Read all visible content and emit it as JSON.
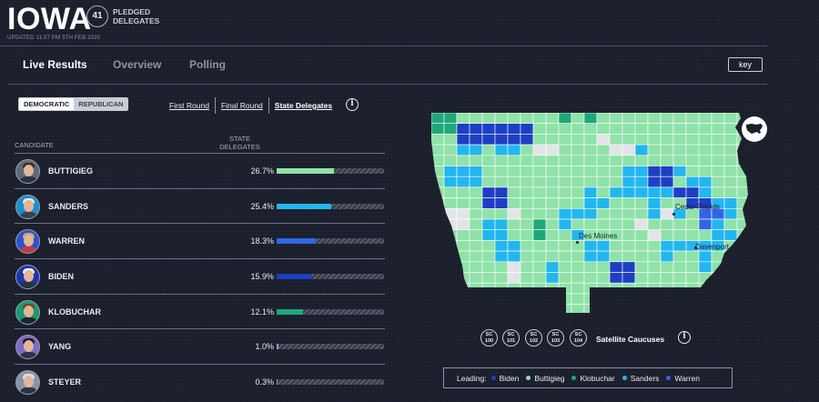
{
  "header": {
    "state": "IOWA",
    "pledged_delegates": "41",
    "pledged_label": "PLEDGED DELEGATES",
    "updated": "UPDATED 11:07 PM 5TH FEB 2020"
  },
  "tabs": [
    {
      "label": "Live Results",
      "active": true
    },
    {
      "label": "Overview",
      "active": false
    },
    {
      "label": "Polling",
      "active": false
    }
  ],
  "key_label": "key",
  "party_toggle": {
    "democratic": "DEMOCRATIC",
    "republican": "REPUBLICAN",
    "selected": "democratic"
  },
  "sub_tabs": [
    {
      "label": "First Round",
      "active": false
    },
    {
      "label": "Final Round",
      "active": false
    },
    {
      "label": "State Delegates",
      "active": true
    }
  ],
  "table": {
    "col_candidate": "CANDIDATE",
    "col_delegates": "STATE DELEGATES",
    "candidates": [
      {
        "name": "BUTTIGIEG",
        "pct": "26.7%",
        "value": 26.7,
        "color": "#8fe2a8"
      },
      {
        "name": "SANDERS",
        "pct": "25.4%",
        "value": 25.4,
        "color": "#22b6ef"
      },
      {
        "name": "WARREN",
        "pct": "18.3%",
        "value": 18.3,
        "color": "#3066e6"
      },
      {
        "name": "BIDEN",
        "pct": "15.9%",
        "value": 15.9,
        "color": "#1d3fc4"
      },
      {
        "name": "KLOBUCHAR",
        "pct": "12.1%",
        "value": 12.1,
        "color": "#1fa77a"
      },
      {
        "name": "YANG",
        "pct": "1.0%",
        "value": 1.0,
        "color": "#8fa0c0"
      },
      {
        "name": "STEYER",
        "pct": "0.3%",
        "value": 0.3,
        "color": "#8fa0c0"
      }
    ]
  },
  "map": {
    "cities": [
      "Cedar Rapids",
      "Des Moines",
      "Davenport"
    ]
  },
  "satellite": {
    "codes": [
      [
        "SC",
        "100"
      ],
      [
        "SC",
        "101"
      ],
      [
        "SC",
        "102"
      ],
      [
        "SC",
        "103"
      ],
      [
        "SC",
        "104"
      ]
    ],
    "label": "Satellite Caucuses"
  },
  "legend": {
    "title": "Leading:",
    "items": [
      {
        "name": "Biden",
        "color": "#1d3fc4"
      },
      {
        "name": "Buttigieg",
        "color": "#8fe2a8"
      },
      {
        "name": "Klobuchar",
        "color": "#1fa77a"
      },
      {
        "name": "Sanders",
        "color": "#22b6ef"
      },
      {
        "name": "Warren",
        "color": "#3066e6"
      }
    ]
  },
  "colors": {
    "buttigieg": "#8fe2a8",
    "sanders": "#22b6ef",
    "warren": "#3066e6",
    "biden": "#1d3fc4",
    "klobuchar": "#1fa77a",
    "tie": "#e2e4e8"
  }
}
